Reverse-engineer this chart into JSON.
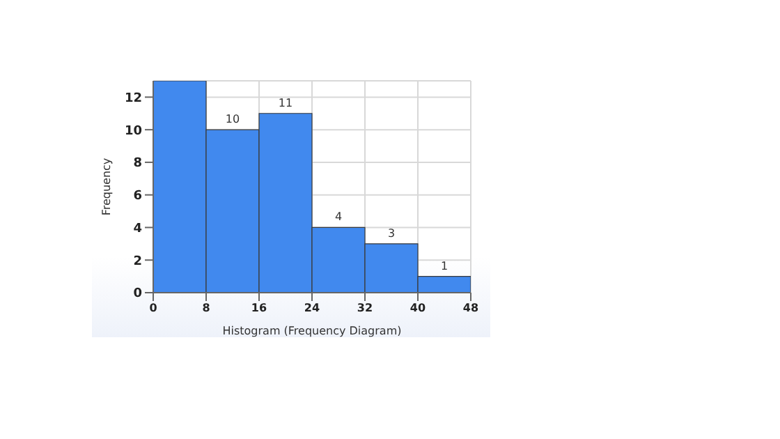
{
  "chart_data": {
    "type": "histogram",
    "xlabel": "Histogram (Frequency Diagram)",
    "ylabel": "Frequency",
    "bins": [
      0,
      8,
      16,
      24,
      32,
      40,
      48
    ],
    "values": [
      13,
      10,
      11,
      4,
      3,
      1
    ],
    "value_labels": [
      null,
      "10",
      "11",
      "4",
      "3",
      "1"
    ],
    "color": "#4189ee",
    "xlim": [
      0,
      48
    ],
    "xticks": [
      0,
      8,
      16,
      24,
      32,
      40,
      48
    ],
    "ylim": [
      0,
      13
    ],
    "yticks": [
      0,
      2,
      4,
      6,
      8,
      10,
      12
    ],
    "grid": true
  }
}
